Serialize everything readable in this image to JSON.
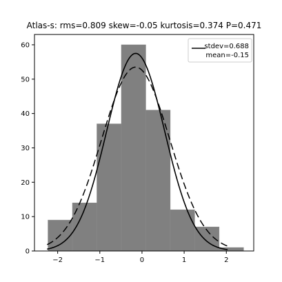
{
  "chart_data": {
    "type": "bar",
    "title": "Atlas-s:   rms=0.809  skew=-0.05   kurtosis=0.374   P=0.471",
    "xlabel": "",
    "ylabel": "",
    "xlim": [
      -2.55,
      2.65
    ],
    "ylim": [
      0,
      63
    ],
    "x_ticks": [
      -2,
      -1,
      0,
      1,
      2
    ],
    "x_tick_labels": [
      "−2",
      "−1",
      "0",
      "1",
      "2"
    ],
    "y_ticks": [
      0,
      10,
      20,
      30,
      40,
      50,
      60
    ],
    "y_tick_labels": [
      "0",
      "10",
      "20",
      "30",
      "40",
      "50",
      "60"
    ],
    "bin_edges": [
      -2.23,
      -1.65,
      -1.07,
      -0.49,
      0.09,
      0.67,
      1.25,
      1.83,
      2.41
    ],
    "values": [
      9,
      14,
      37,
      60,
      41,
      12,
      7,
      1
    ],
    "bar_color": "#808080",
    "curves": [
      {
        "style": "solid",
        "mean": -0.15,
        "stdev": 0.688,
        "peak": 57.5
      },
      {
        "style": "dashed",
        "mean": -0.15,
        "stdev": 0.809,
        "peak": 53.5
      }
    ],
    "legend": {
      "position": "top-right",
      "lines": [
        "stdev=0.688",
        "mean=-0.15"
      ]
    },
    "grid": false
  }
}
